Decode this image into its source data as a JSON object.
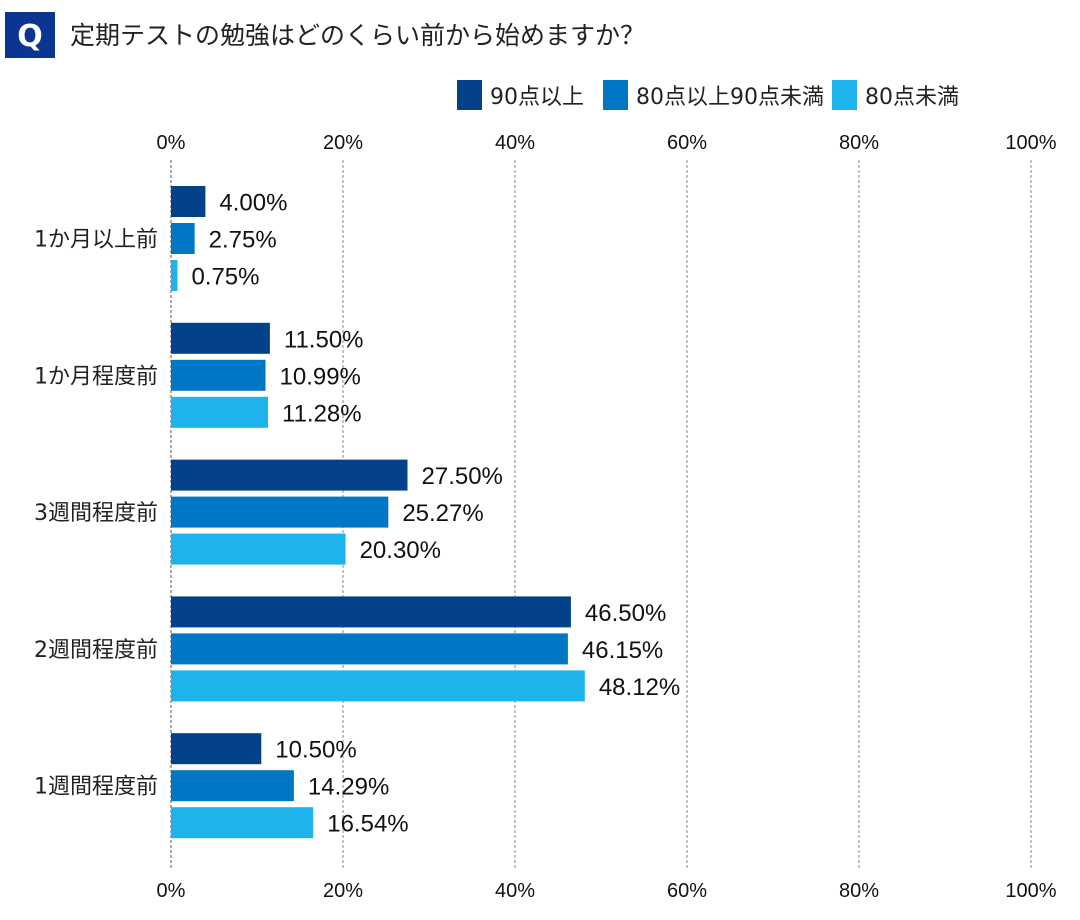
{
  "header": {
    "badge": "Q",
    "title": "定期テストの勉強はどのくらい前から始めますか？"
  },
  "chart_data": {
    "type": "bar",
    "orientation": "horizontal",
    "title": "定期テストの勉強はどのくらい前から始めますか？",
    "categories": [
      "1か月以上前",
      "1か月程度前",
      "3週間程度前",
      "2週間程度前",
      "1週間程度前"
    ],
    "series": [
      {
        "name": "90点以上",
        "color": "#03428a",
        "values": [
          4.0,
          11.5,
          27.5,
          46.5,
          10.5
        ]
      },
      {
        "name": "80点以上90点未満",
        "color": "#0077c5",
        "values": [
          2.75,
          10.99,
          25.27,
          46.15,
          14.29
        ]
      },
      {
        "name": "80点未満",
        "color": "#1eb3ea",
        "values": [
          0.75,
          11.28,
          20.3,
          48.12,
          16.54
        ]
      }
    ],
    "xlim": [
      0,
      100
    ],
    "xticks": [
      "0%",
      "20%",
      "40%",
      "60%",
      "80%",
      "100%"
    ],
    "grid": true,
    "legend": "top-right",
    "value_suffix": "%"
  }
}
